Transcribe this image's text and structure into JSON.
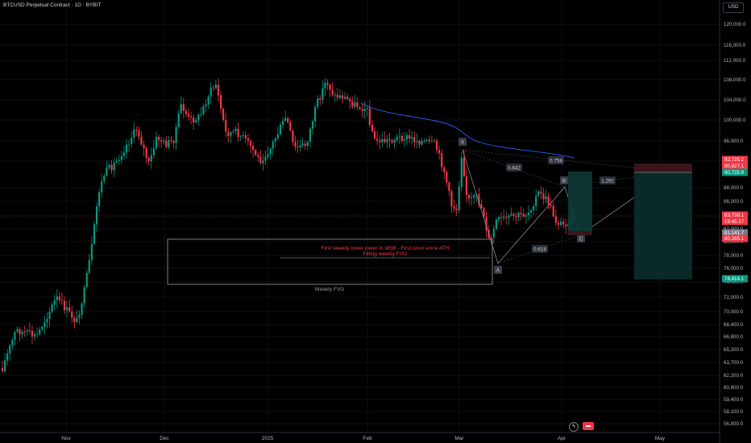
{
  "header": {
    "title": "BTCUSD Perpetual Contract · 1D · BYBIT",
    "currency": "USD"
  },
  "axis": {
    "y_ticks": [
      "120,000.0",
      "116,000.0",
      "112,000.0",
      "108,000.0",
      "104,000.0",
      "100,000.0",
      "96,000.0",
      "92,000.0",
      "88,000.0",
      "86,000.0",
      "84,000.0",
      "82,000.0",
      "80,000.0",
      "78,000.0",
      "76,000.0",
      "74,000.0",
      "72,000.0",
      "70,000.0",
      "68,400.0",
      "66,800.0",
      "65,200.0",
      "63,700.0",
      "62,200.0",
      "60,800.0",
      "59,400.0",
      "58,100.0",
      "56,800.0"
    ],
    "x_ticks": [
      "Nov",
      "Dec",
      "2025",
      "Feb",
      "Mar",
      "Apr",
      "May"
    ]
  },
  "price_tags": [
    {
      "text": "92,725.2",
      "bg": "#f23645",
      "fg": "#ffffff"
    },
    {
      "text": "90,827.1",
      "bg": "#f23645",
      "fg": "#ffffff"
    },
    {
      "text": "90,725.9",
      "bg": "#089981",
      "fg": "#ffffff"
    },
    {
      "text": "83,738.1",
      "bg": "#f23645",
      "fg": "#ffffff"
    },
    {
      "text": "19:45:17",
      "bg": "#f23645",
      "fg": "#ffffff"
    },
    {
      "text": "81,141.7",
      "bg": "#787b86",
      "fg": "#ffffff"
    },
    {
      "text": "80,265.1",
      "bg": "#f23645",
      "fg": "#ffffff"
    },
    {
      "text": "74,414.1",
      "bg": "#089981",
      "fg": "#ffffff"
    }
  ],
  "annotations": {
    "fvg_text": "Weekly FVG",
    "line1": "First weekly lower lower in MSB - First pivot since ATH",
    "line2": "Filling weekly FVG"
  },
  "pattern": {
    "points": [
      "X",
      "A",
      "B",
      "C",
      "D"
    ],
    "ratios": [
      "0.642",
      "0.758",
      "0.618",
      "1.292"
    ]
  },
  "chart_data": {
    "type": "candlestick",
    "title": "BTCUSD Perpetual Contract · 1D · BYBIT",
    "ylim": [
      56000,
      122000
    ],
    "series": [
      {
        "name": "price_pivots",
        "x": [
          "Nov",
          "Dec",
          "2025",
          "Feb",
          "Mar",
          "Apr"
        ],
        "values": [
          69000,
          96000,
          93500,
          102000,
          86000,
          82000
        ]
      }
    ],
    "colors": {
      "up": "#089981",
      "down": "#f23645",
      "ma": "#2962ff"
    },
    "current_price": 83738.1,
    "countdown": "19:45:17"
  },
  "icons": {
    "bolt": "lightning-icon",
    "flag": "events-flag-icon"
  }
}
